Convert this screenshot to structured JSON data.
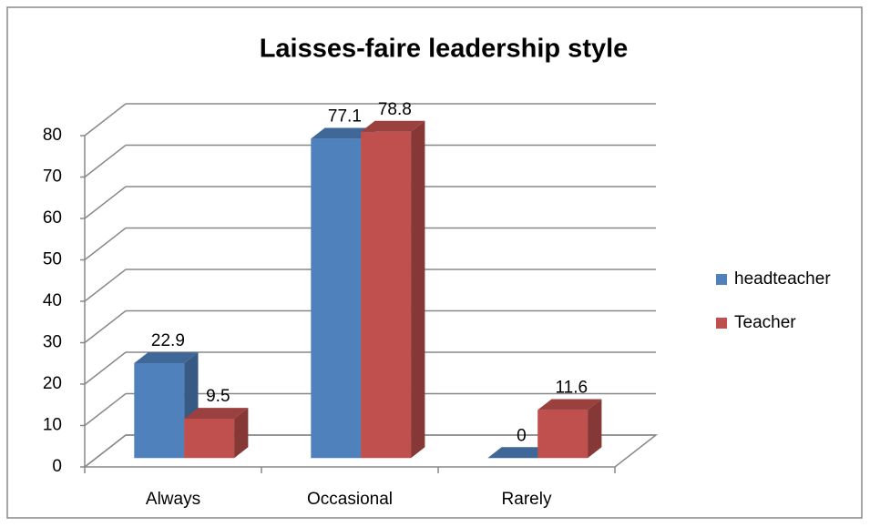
{
  "chart_data": {
    "type": "bar3d",
    "title": "Laisses-faire leadership style",
    "categories": [
      "Always",
      "Occasional",
      "Rarely"
    ],
    "series": [
      {
        "name": "headteacher",
        "color": "#4f81bd",
        "values": [
          22.9,
          77.1,
          0
        ]
      },
      {
        "name": "Teacher",
        "color": "#c0504d",
        "values": [
          9.5,
          78.8,
          11.6
        ]
      }
    ],
    "ylim": [
      0,
      80
    ],
    "yticks": [
      0,
      10,
      20,
      30,
      40,
      50,
      60,
      70,
      80
    ],
    "grid": true,
    "legend": "right"
  }
}
